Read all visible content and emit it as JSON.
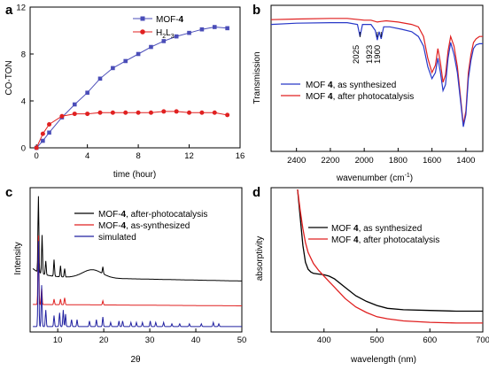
{
  "chart_data": [
    {
      "panel": "a",
      "type": "line",
      "xlabel": "time (hour)",
      "ylabel": "CO-TON",
      "xlim": [
        -0.5,
        16
      ],
      "ylim": [
        0,
        12
      ],
      "xticks": [
        "0",
        "4",
        "8",
        "12",
        "16"
      ],
      "yticks": [
        "0",
        "4",
        "8",
        "12"
      ],
      "legend_position": "top-right",
      "series": [
        {
          "name_main": "MOF-",
          "name_bold": "4",
          "color": "#4a4db8",
          "marker": "square",
          "x": [
            0,
            0.5,
            1,
            2,
            3,
            4,
            5,
            6,
            7,
            8,
            9,
            10,
            11,
            12,
            13,
            14,
            15
          ],
          "y": [
            0,
            0.6,
            1.3,
            2.6,
            3.7,
            4.7,
            5.9,
            6.8,
            7.4,
            8.0,
            8.6,
            9.1,
            9.5,
            9.8,
            10.1,
            10.3,
            10.2
          ]
        },
        {
          "name_main": "H",
          "name_sub1": "2",
          "name_mid": "L",
          "name_sub2": "3",
          "color": "#e02020",
          "marker": "circle",
          "x": [
            0,
            0.5,
            1,
            2,
            3,
            4,
            5,
            6,
            7,
            8,
            9,
            10,
            11,
            12,
            13,
            14,
            15
          ],
          "y": [
            0,
            1.2,
            2.0,
            2.7,
            2.9,
            2.9,
            3.0,
            3.0,
            3.0,
            3.0,
            3.0,
            3.1,
            3.1,
            3.0,
            3.0,
            3.0,
            2.8
          ]
        }
      ]
    },
    {
      "panel": "b",
      "type": "line",
      "xlabel": "wavenumber (cm",
      "xlabel_sup": "-1",
      "xlabel_end": ")",
      "ylabel": "Transmission",
      "xlim": [
        2550,
        1300
      ],
      "ylim": [
        0,
        1
      ],
      "xticks": [
        "2400",
        "2200",
        "2000",
        "1800",
        "1600",
        "1400"
      ],
      "annotations": [
        "2025",
        "1923",
        "1900"
      ],
      "legend_position": "lower-left",
      "series": [
        {
          "name_main": "MOF ",
          "name_bold": "4",
          "name_end": ", as synthesized",
          "color": "#2838c8",
          "x": [
            2550,
            2400,
            2200,
            2100,
            2040,
            2025,
            2010,
            1960,
            1935,
            1923,
            1912,
            1900,
            1885,
            1850,
            1780,
            1720,
            1680,
            1650,
            1625,
            1600,
            1580,
            1565,
            1550,
            1535,
            1520,
            1505,
            1490,
            1470,
            1450,
            1430,
            1415,
            1400,
            1385,
            1370,
            1355,
            1340,
            1320,
            1300
          ],
          "y": [
            0.9,
            0.91,
            0.915,
            0.915,
            0.9,
            0.8,
            0.9,
            0.9,
            0.85,
            0.77,
            0.84,
            0.78,
            0.88,
            0.88,
            0.86,
            0.84,
            0.8,
            0.72,
            0.55,
            0.45,
            0.5,
            0.62,
            0.5,
            0.35,
            0.4,
            0.62,
            0.75,
            0.65,
            0.5,
            0.25,
            0.05,
            0.15,
            0.45,
            0.6,
            0.7,
            0.73,
            0.74,
            0.74
          ]
        },
        {
          "name_main": "MOF ",
          "name_bold": "4",
          "name_end": ", after photocatalysis",
          "color": "#e02020",
          "x": [
            2550,
            2400,
            2200,
            2100,
            2030,
            2000,
            1960,
            1923,
            1900,
            1870,
            1800,
            1720,
            1680,
            1650,
            1625,
            1600,
            1580,
            1565,
            1550,
            1535,
            1520,
            1505,
            1490,
            1470,
            1450,
            1430,
            1415,
            1400,
            1385,
            1370,
            1355,
            1340,
            1320,
            1300
          ],
          "y": [
            0.94,
            0.945,
            0.95,
            0.95,
            0.94,
            0.935,
            0.935,
            0.92,
            0.925,
            0.93,
            0.92,
            0.9,
            0.88,
            0.8,
            0.62,
            0.5,
            0.56,
            0.7,
            0.58,
            0.42,
            0.48,
            0.68,
            0.8,
            0.72,
            0.55,
            0.28,
            0.07,
            0.18,
            0.5,
            0.65,
            0.75,
            0.78,
            0.8,
            0.8
          ]
        }
      ]
    },
    {
      "panel": "c",
      "type": "line",
      "xlabel": "2θ",
      "ylabel": "Intensity",
      "xlim": [
        4,
        50
      ],
      "xticks": [
        "10",
        "20",
        "30",
        "40",
        "50"
      ],
      "legend_position": "top-right",
      "series": [
        {
          "name_main": "MOF-",
          "name_bold": "4",
          "name_end": ", after-photocatalysis",
          "color": "#000000",
          "baseline": 0.38,
          "peaks": [
            [
              5.8,
              0.55
            ],
            [
              6.6,
              0.28
            ],
            [
              7.4,
              0.1
            ],
            [
              9.2,
              0.12
            ],
            [
              10.6,
              0.08
            ],
            [
              11.5,
              0.06
            ],
            [
              19.8,
              0.05
            ]
          ],
          "hump": [
            17.5,
            0.06
          ]
        },
        {
          "name_main": "MOF-",
          "name_bold": "4",
          "name_end": ", as-synthesized",
          "color": "#e02020",
          "baseline": 0.18,
          "peaks": [
            [
              5.8,
              0.5
            ],
            [
              6.5,
              0.12
            ],
            [
              9.2,
              0.04
            ],
            [
              10.6,
              0.04
            ],
            [
              11.5,
              0.05
            ],
            [
              19.8,
              0.03
            ]
          ]
        },
        {
          "name_main": "simulated",
          "color": "#2020a0",
          "baseline": 0.02,
          "peaks": [
            [
              5.8,
              0.62
            ],
            [
              6.5,
              0.3
            ],
            [
              7.4,
              0.12
            ],
            [
              9.2,
              0.08
            ],
            [
              10.4,
              0.1
            ],
            [
              11.2,
              0.12
            ],
            [
              11.7,
              0.09
            ],
            [
              13.0,
              0.05
            ],
            [
              14.2,
              0.05
            ],
            [
              16.9,
              0.04
            ],
            [
              18.4,
              0.05
            ],
            [
              19.8,
              0.07
            ],
            [
              21.5,
              0.03
            ],
            [
              23.3,
              0.04
            ],
            [
              24.1,
              0.04
            ],
            [
              25.9,
              0.03
            ],
            [
              27.1,
              0.03
            ],
            [
              28.4,
              0.03
            ],
            [
              30.1,
              0.04
            ],
            [
              31.3,
              0.03
            ],
            [
              33.0,
              0.03
            ],
            [
              34.8,
              0.02
            ],
            [
              36.5,
              0.02
            ],
            [
              38.6,
              0.02
            ],
            [
              41.2,
              0.02
            ],
            [
              43.8,
              0.03
            ],
            [
              45.0,
              0.02
            ]
          ]
        }
      ]
    },
    {
      "panel": "d",
      "type": "line",
      "xlabel": "wavelength (nm)",
      "ylabel": "absorptivity",
      "xlim": [
        300,
        700
      ],
      "ylim": [
        0,
        1
      ],
      "xticks": [
        "400",
        "500",
        "600",
        "700"
      ],
      "legend_position": "top-right",
      "series": [
        {
          "name_main": "MOF ",
          "name_bold": "4",
          "name_end": ", as synthesized",
          "color": "#000000",
          "x": [
            350,
            355,
            360,
            365,
            370,
            375,
            380,
            390,
            400,
            410,
            420,
            440,
            460,
            480,
            500,
            520,
            550,
            600,
            650,
            700
          ],
          "y": [
            1.0,
            0.8,
            0.6,
            0.48,
            0.43,
            0.41,
            0.4,
            0.395,
            0.39,
            0.38,
            0.36,
            0.3,
            0.24,
            0.2,
            0.17,
            0.15,
            0.14,
            0.135,
            0.13,
            0.13
          ]
        },
        {
          "name_main": "MOF ",
          "name_bold": "4",
          "name_end": ", after photocatalysis",
          "color": "#e02020",
          "x": [
            350,
            355,
            360,
            365,
            370,
            380,
            390,
            400,
            410,
            420,
            440,
            460,
            480,
            500,
            520,
            550,
            600,
            650,
            700
          ],
          "y": [
            1.0,
            0.85,
            0.72,
            0.62,
            0.55,
            0.47,
            0.42,
            0.38,
            0.34,
            0.3,
            0.22,
            0.16,
            0.12,
            0.09,
            0.075,
            0.06,
            0.05,
            0.045,
            0.045
          ]
        }
      ]
    }
  ],
  "panel_labels": [
    "a",
    "b",
    "c",
    "d"
  ]
}
